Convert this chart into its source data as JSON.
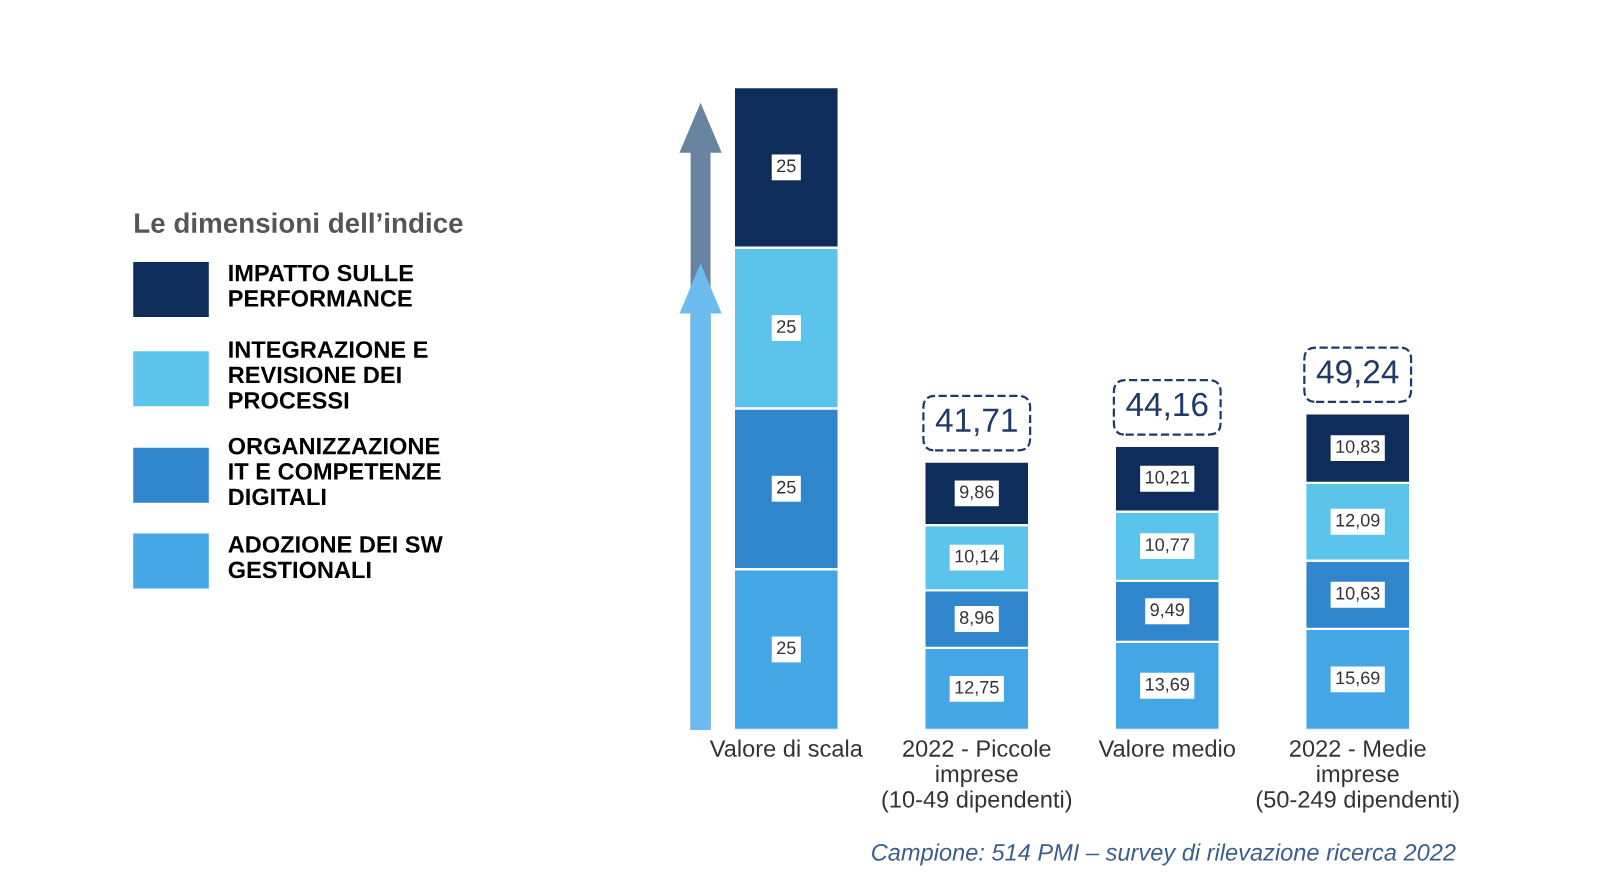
{
  "chart_data": {
    "type": "bar",
    "stacked": true,
    "categories": [
      "Valore di scala",
      "2022 - Piccole\nimprese\n(10-49 dipendenti)",
      "Valore medio",
      "2022 - Medie\nimprese\n(50-249 dipendenti)"
    ],
    "series": [
      {
        "name": "ADOZIONE DEI SW\nGESTIONALI",
        "color": "#45a6e6",
        "values": [
          25,
          12.75,
          13.69,
          15.69
        ],
        "value_labels": [
          "25",
          "12,75",
          "13,69",
          "15,69"
        ]
      },
      {
        "name": "ORGANIZZAZIONE\nIT E COMPETENZE\nDIGITALI",
        "color": "#2f86cc",
        "values": [
          25,
          8.96,
          9.49,
          10.63
        ],
        "value_labels": [
          "25",
          "8,96",
          "9,49",
          "10,63"
        ]
      },
      {
        "name": "INTEGRAZIONE E\nREVISIONE DEI\nPROCESSI",
        "color": "#5cc3ea",
        "values": [
          25,
          10.14,
          10.77,
          12.09
        ],
        "value_labels": [
          "25",
          "10,14",
          "10,77",
          "12,09"
        ]
      },
      {
        "name": "IMPATTO SULLE\nPERFORMANCE",
        "color": "#0f2d5a",
        "values": [
          25,
          9.86,
          10.21,
          10.83
        ],
        "value_labels": [
          "25",
          "9,86",
          "10,21",
          "10,83"
        ]
      }
    ],
    "totals": [
      null,
      "41,71",
      "44,16",
      "49,24"
    ],
    "legend": "left",
    "legend_title": "Le dimensioni dell’indice",
    "annotations": [
      "Campione: 514 PMI – survey di rilevazione ricerca 2022"
    ]
  }
}
